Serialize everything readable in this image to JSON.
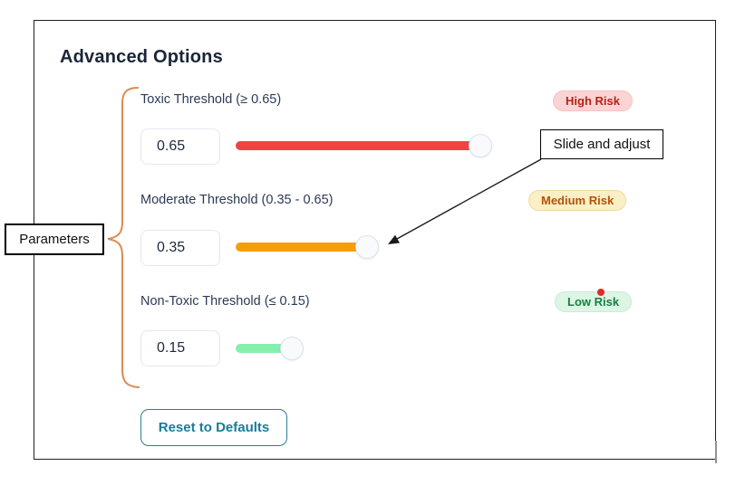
{
  "panel": {
    "title": "Advanced Options",
    "reset_button": "Reset to Defaults"
  },
  "thresholds": [
    {
      "label": "Toxic Threshold (≥ 0.65)",
      "value": "0.65",
      "badge": {
        "label": "High Risk",
        "bg": "#FAD4D4",
        "color": "#B42318",
        "border": "#F5C2C2"
      },
      "slider": {
        "value": 0.65,
        "color": "#EF4444"
      }
    },
    {
      "label": "Moderate Threshold (0.35 - 0.65)",
      "value": "0.35",
      "badge": {
        "label": "Medium Risk",
        "bg": "#FBEFC5",
        "color": "#B45309",
        "border": "#EFD9A0"
      },
      "slider": {
        "value": 0.35,
        "color": "#F59E0B"
      }
    },
    {
      "label": "Non-Toxic Threshold (≤ 0.15)",
      "value": "0.15",
      "badge": {
        "label": "Low Risk",
        "bg": "#DCF5E5",
        "color": "#16803D",
        "border": "#C9EBD4"
      },
      "slider": {
        "value": 0.15,
        "color": "#86EFAC"
      }
    }
  ],
  "annotations": {
    "parameters_label": "Parameters",
    "slide_adjust_label": "Slide and adjust",
    "brace_color": "#DD8A54",
    "cursor_dot_color": "#E02B2B",
    "arrow_color": "#1a1a1a"
  }
}
